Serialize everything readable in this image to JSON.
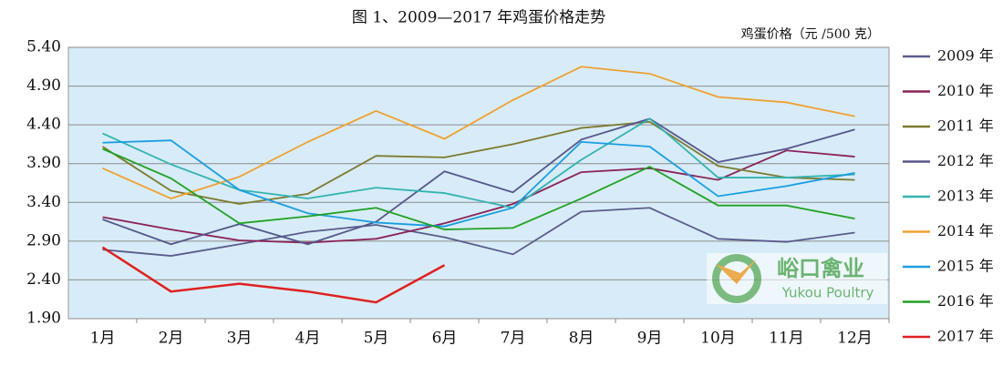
{
  "chart_data": {
    "type": "line",
    "title": "图 1、2009—2017 年鸡蛋价格走势",
    "y_label": "鸡蛋价格（元 /500 克）",
    "watermark": {
      "cn": "峪口禽业",
      "en": "Yukou Poultry"
    },
    "categories": [
      "1月",
      "2月",
      "3月",
      "4月",
      "5月",
      "6月",
      "7月",
      "8月",
      "9月",
      "10月",
      "11月",
      "12月"
    ],
    "ylim": [
      1.9,
      5.4
    ],
    "yticks": [
      {
        "value": 1.9,
        "label": "1.90"
      },
      {
        "value": 2.4,
        "label": "2.40"
      },
      {
        "value": 2.9,
        "label": "2.90"
      },
      {
        "value": 3.4,
        "label": "3.40"
      },
      {
        "value": 3.9,
        "label": "3.90"
      },
      {
        "value": 4.4,
        "label": "4.40"
      },
      {
        "value": 4.9,
        "label": "4.90"
      },
      {
        "value": 5.4,
        "label": "5.40"
      }
    ],
    "grid": true,
    "legend": "right",
    "series": [
      {
        "name": "2009 年",
        "color": "#5b5b8c",
        "values": [
          2.79,
          2.71,
          2.86,
          3.02,
          3.11,
          2.95,
          2.73,
          3.28,
          3.33,
          2.93,
          2.89,
          3.01
        ]
      },
      {
        "name": "2010 年",
        "color": "#8b2257",
        "values": [
          3.21,
          3.05,
          2.91,
          2.88,
          2.93,
          3.13,
          3.38,
          3.79,
          3.84,
          3.69,
          4.07,
          3.99
        ]
      },
      {
        "name": "2011 年",
        "color": "#7d7a2e",
        "values": [
          4.12,
          3.55,
          3.38,
          3.51,
          4.0,
          3.98,
          4.15,
          4.36,
          4.44,
          3.87,
          3.72,
          3.69
        ]
      },
      {
        "name": "2012 年",
        "color": "#56568a",
        "values": [
          3.18,
          2.86,
          3.12,
          2.86,
          3.15,
          3.8,
          3.53,
          4.21,
          4.48,
          3.92,
          4.09,
          4.34
        ]
      },
      {
        "name": "2013 年",
        "color": "#33b3b0",
        "values": [
          4.29,
          3.89,
          3.56,
          3.45,
          3.59,
          3.52,
          3.33,
          3.95,
          4.48,
          3.72,
          3.72,
          3.76
        ]
      },
      {
        "name": "2014 年",
        "color": "#f0a030",
        "values": [
          3.84,
          3.45,
          3.73,
          4.18,
          4.58,
          4.22,
          4.72,
          5.15,
          5.06,
          4.76,
          4.69,
          4.51
        ]
      },
      {
        "name": "2015 年",
        "color": "#1a9de0",
        "values": [
          4.17,
          4.2,
          3.56,
          3.26,
          3.14,
          3.09,
          3.33,
          4.18,
          4.12,
          3.48,
          3.61,
          3.78
        ]
      },
      {
        "name": "2016 年",
        "color": "#22a022",
        "values": [
          4.09,
          3.71,
          3.13,
          3.22,
          3.33,
          3.05,
          3.07,
          3.45,
          3.86,
          3.36,
          3.36,
          3.19
        ]
      },
      {
        "name": "2017 年",
        "color": "#e02020",
        "values": [
          2.82,
          2.25,
          2.35,
          2.25,
          2.11,
          2.59,
          null,
          null,
          null,
          null,
          null,
          null
        ]
      }
    ]
  }
}
